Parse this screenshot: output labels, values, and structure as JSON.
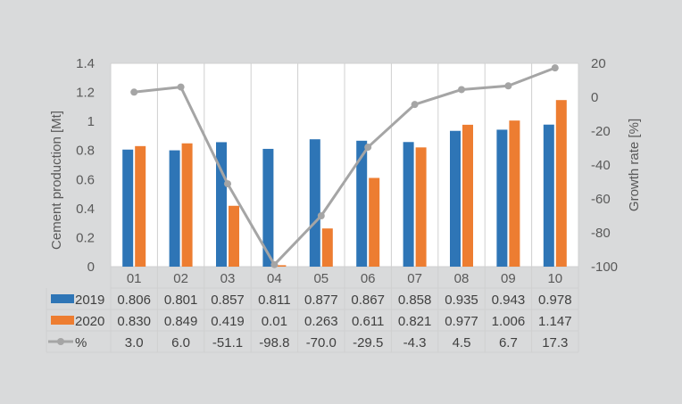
{
  "chart_data": {
    "type": "bar",
    "categories": [
      "01",
      "02",
      "03",
      "04",
      "05",
      "06",
      "07",
      "08",
      "09",
      "10"
    ],
    "series": [
      {
        "name": "2019",
        "type": "bar",
        "axis": "left",
        "color": "#2e75b6",
        "values": [
          0.806,
          0.801,
          0.857,
          0.811,
          0.877,
          0.867,
          0.858,
          0.935,
          0.943,
          0.978
        ],
        "labels": [
          "0.806",
          "0.801",
          "0.857",
          "0.811",
          "0.877",
          "0.867",
          "0.858",
          "0.935",
          "0.943",
          "0.978"
        ]
      },
      {
        "name": "2020",
        "type": "bar",
        "axis": "left",
        "color": "#ed7d31",
        "values": [
          0.83,
          0.849,
          0.419,
          0.01,
          0.263,
          0.611,
          0.821,
          0.977,
          1.006,
          1.147
        ],
        "labels": [
          "0.830",
          "0.849",
          "0.419",
          "0.01",
          "0.263",
          "0.611",
          "0.821",
          "0.977",
          "1.006",
          "1.147"
        ]
      },
      {
        "name": "%",
        "type": "line",
        "axis": "right",
        "color": "#a5a5a5",
        "values": [
          3.0,
          6.0,
          -51.1,
          -98.8,
          -70.0,
          -29.5,
          -4.3,
          4.5,
          6.7,
          17.3
        ],
        "labels": [
          "3.0",
          "6.0",
          "-51.1",
          "-98.8",
          "-70.0",
          "-29.5",
          "-4.3",
          "4.5",
          "6.7",
          "17.3"
        ]
      }
    ],
    "ylabel": "Cement production [Mt]",
    "y2label": "Growth rate [%]",
    "ylim": [
      0,
      1.4
    ],
    "y2lim": [
      -100,
      20
    ],
    "yticks": [
      "0",
      "0.2",
      "0.4",
      "0.6",
      "0.8",
      "1",
      "1.2",
      "1.4"
    ],
    "y2ticks": [
      "-100",
      "-80",
      "-60",
      "-40",
      "-20",
      "0",
      "20"
    ],
    "grid": false,
    "legend": "data-table"
  }
}
